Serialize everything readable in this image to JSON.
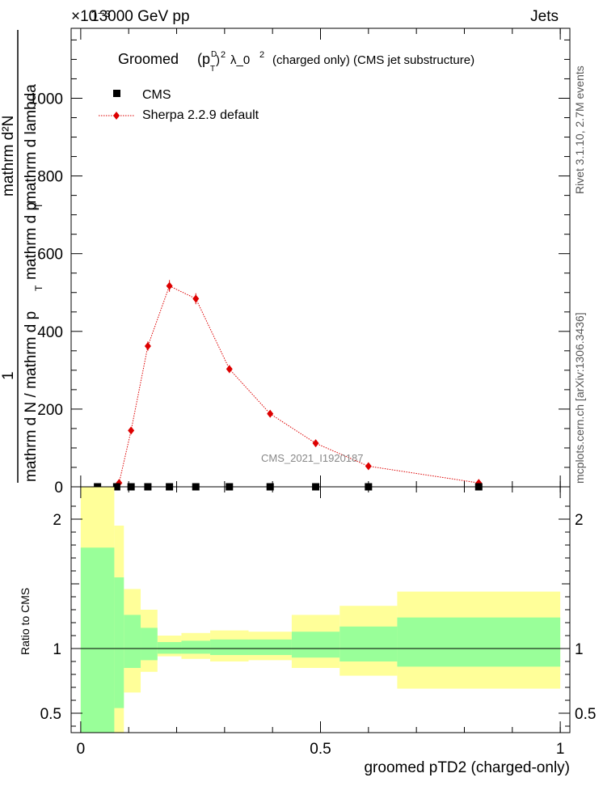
{
  "header": {
    "left": "13000 GeV pp",
    "right": "Jets",
    "multiplier": "×10⁻³"
  },
  "side_text": {
    "rivet": "Rivet 3.1.10,  2.7M events",
    "mcplots": "mcplots.cern.ch [arXiv:1306.3436]"
  },
  "watermark": "CMS_2021_I1920187",
  "chart_data": [
    {
      "type": "line",
      "title_parts": {
        "a": "Groomed",
        "b": "(p",
        "sub": "T",
        "sup_d": "D",
        "c": ")",
        "sup2": "2",
        "d": "λ_0",
        "sup3": "2",
        "e": "(charged only) (CMS jet substructure)"
      },
      "ylabel_parts": {
        "num_one": "1",
        "denominator": "mathrm d N / mathrm d p",
        "den_sub": "T",
        "numerator_top": "mathrm d²N",
        "numerator_bottom": "mathrm d p",
        "numerator_sub": "T",
        "numerator_tail": "mathrm d lambda"
      },
      "xlim": [
        -0.02,
        1.02
      ],
      "ylim": [
        0,
        1180
      ],
      "yticks": [
        {
          "v": 0,
          "label": "0"
        },
        {
          "v": 200,
          "label": "200"
        },
        {
          "v": 400,
          "label": "400"
        },
        {
          "v": 600,
          "label": "600"
        },
        {
          "v": 800,
          "label": "800"
        },
        {
          "v": 1000,
          "label": "1000"
        }
      ],
      "legend": [
        "CMS",
        "Sherpa 2.2.9 default"
      ],
      "series": [
        {
          "name": "CMS",
          "x": [
            0.035,
            0.075,
            0.105,
            0.14,
            0.185,
            0.24,
            0.31,
            0.395,
            0.49,
            0.6,
            0.83
          ],
          "values": [
            0,
            0,
            0,
            0,
            0,
            0,
            0,
            0,
            0,
            0,
            0
          ]
        },
        {
          "name": "Sherpa 2.2.9 default",
          "x": [
            0.08,
            0.105,
            0.14,
            0.185,
            0.24,
            0.31,
            0.395,
            0.49,
            0.6,
            0.83
          ],
          "values": [
            10,
            145,
            362,
            517,
            484,
            303,
            188,
            112,
            53,
            10
          ],
          "errors": [
            3,
            8,
            12,
            15,
            14,
            10,
            7,
            5,
            4,
            2
          ]
        }
      ]
    },
    {
      "type": "area",
      "ylabel": "Ratio to CMS",
      "xlabel": "groomed pTD2 (charged-only)",
      "xlim": [
        -0.02,
        1.02
      ],
      "ylim": [
        0.35,
        2.25
      ],
      "yticks": [
        {
          "v": 0.5,
          "label": "0.5"
        },
        {
          "v": 1,
          "label": "1"
        },
        {
          "v": 2,
          "label": "2"
        }
      ],
      "xticks": [
        {
          "v": 0,
          "label": "0"
        },
        {
          "v": 0.5,
          "label": "0.5"
        },
        {
          "v": 1,
          "label": "1"
        }
      ],
      "bins": [
        {
          "lo": 0.0,
          "hi": 0.07,
          "y_lo": 0.35,
          "y_hi": 2.25,
          "g_lo": 0.35,
          "g_hi": 1.78
        },
        {
          "lo": 0.07,
          "hi": 0.09,
          "y_lo": 0.35,
          "y_hi": 1.95,
          "g_lo": 0.54,
          "g_hi": 1.55
        },
        {
          "lo": 0.09,
          "hi": 0.125,
          "y_lo": 0.66,
          "y_hi": 1.46,
          "g_lo": 0.85,
          "g_hi": 1.26
        },
        {
          "lo": 0.125,
          "hi": 0.16,
          "y_lo": 0.82,
          "y_hi": 1.3,
          "g_lo": 0.91,
          "g_hi": 1.16
        },
        {
          "lo": 0.16,
          "hi": 0.21,
          "y_lo": 0.94,
          "y_hi": 1.1,
          "g_lo": 0.96,
          "g_hi": 1.05
        },
        {
          "lo": 0.21,
          "hi": 0.27,
          "y_lo": 0.92,
          "y_hi": 1.12,
          "g_lo": 0.96,
          "g_hi": 1.06
        },
        {
          "lo": 0.27,
          "hi": 0.35,
          "y_lo": 0.9,
          "y_hi": 1.14,
          "g_lo": 0.95,
          "g_hi": 1.07
        },
        {
          "lo": 0.35,
          "hi": 0.44,
          "y_lo": 0.91,
          "y_hi": 1.13,
          "g_lo": 0.95,
          "g_hi": 1.07
        },
        {
          "lo": 0.44,
          "hi": 0.54,
          "y_lo": 0.85,
          "y_hi": 1.26,
          "g_lo": 0.93,
          "g_hi": 1.13
        },
        {
          "lo": 0.54,
          "hi": 0.66,
          "y_lo": 0.79,
          "y_hi": 1.33,
          "g_lo": 0.9,
          "g_hi": 1.17
        },
        {
          "lo": 0.66,
          "hi": 1.0,
          "y_lo": 0.69,
          "y_hi": 1.44,
          "g_lo": 0.86,
          "g_hi": 1.24
        }
      ],
      "reference": 1
    }
  ],
  "colors": {
    "mc": "#dd0000",
    "data": "#000000",
    "band_outer": "#ffff99",
    "band_inner": "#99ff99",
    "axis": "#000000",
    "side": "#555555",
    "watermark": "#888888"
  }
}
